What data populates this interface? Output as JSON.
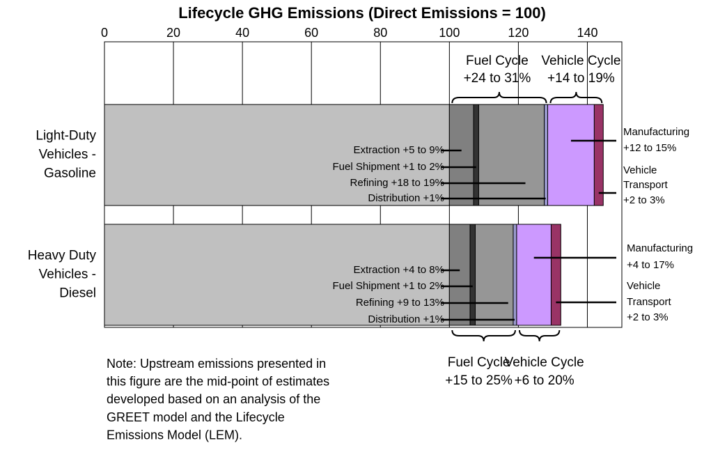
{
  "chart_data": {
    "type": "stacked-bar-horizontal",
    "title": "Lifecycle GHG Emissions (Direct Emissions = 100)",
    "categories": [
      [
        "Light-Duty",
        "Vehicles -",
        "Gasoline"
      ],
      [
        "Heavy Duty",
        "Vehicles -",
        "Diesel"
      ]
    ],
    "series": [
      {
        "color": "#c0c0c0",
        "values": [
          100,
          100
        ]
      },
      {
        "color": "#808080",
        "values": [
          7,
          6
        ]
      },
      {
        "color": "#333333",
        "values": [
          1.5,
          1.5
        ]
      },
      {
        "color": "#969696",
        "values": [
          19,
          11
        ]
      },
      {
        "color": "#9999cc",
        "values": [
          1,
          1
        ]
      },
      {
        "color": "#cc99ff",
        "values": [
          13.5,
          10
        ]
      },
      {
        "color": "#993366",
        "values": [
          2.6,
          2.8
        ]
      }
    ],
    "xlim": [
      0,
      150
    ],
    "xticks": [
      0,
      20,
      40,
      60,
      80,
      100,
      120,
      140
    ],
    "grid": true,
    "segment_labels": [
      [
        "Extraction +5 to 9%",
        "Fuel Shipment +1 to 2%",
        "Refining +18 to 19%",
        "Distribution +1%"
      ],
      [
        "Extraction +4 to 8%",
        "Fuel Shipment +1 to 2%",
        "Refining +9 to 13%",
        "Distribution +1%"
      ]
    ],
    "vehicle_labels": [
      [
        [
          "Manufacturing",
          "+12 to 15%"
        ],
        [
          "Vehicle",
          "Transport",
          "+2 to 3%"
        ]
      ],
      [
        [
          "Manufacturing",
          "+4 to 17%"
        ],
        [
          "Vehicle",
          "Transport",
          "+2 to 3%"
        ]
      ]
    ],
    "cycle_labels": [
      [
        [
          "Fuel Cycle",
          "+24 to 31%"
        ],
        [
          "Vehicle Cycle",
          "+14 to 19%"
        ]
      ],
      [
        [
          "Fuel Cycle",
          "+15 to 25%"
        ],
        [
          "Vehicle Cycle",
          "+6 to 20%"
        ]
      ]
    ],
    "note": [
      "Note: Upstream emissions presented in",
      "this figure are the mid-point of estimates",
      "developed based on an analysis of the",
      "GREET model and the Lifecycle",
      "Emissions Model (LEM)."
    ]
  }
}
